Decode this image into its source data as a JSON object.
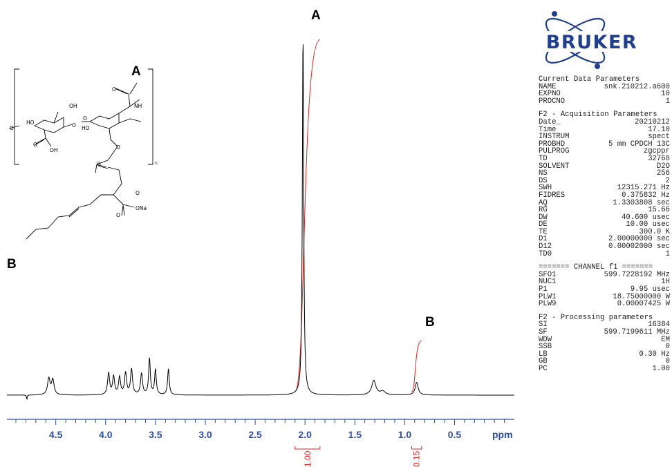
{
  "logo": {
    "text": "BRUKER",
    "color": "#1f3f8f"
  },
  "peak_labels": {
    "a_main": "A",
    "b_main": "B",
    "a_struct": "A",
    "b_struct": "B"
  },
  "structure": {
    "atoms": {
      "nh": "NH",
      "oh1": "OH",
      "ho1": "HO",
      "ho2": "HO",
      "oh2": "OH",
      "ona": "ONa",
      "o1": "O",
      "o2": "O",
      "o3": "O",
      "o4": "O",
      "o5": "O",
      "o6": "O",
      "o7": "O",
      "o8": "O",
      "o9": "O"
    },
    "subscript": "n"
  },
  "parameters": {
    "current": {
      "title": "Current Data Parameters",
      "rows": [
        [
          "NAME",
          "snk.210212.a600"
        ],
        [
          "EXPNO",
          "10"
        ],
        [
          "PROCNO",
          "1"
        ]
      ]
    },
    "acquisition": {
      "title": "F2 - Acquisition Parameters",
      "rows": [
        [
          "Date_",
          "20210212"
        ],
        [
          "Time",
          "17.10"
        ],
        [
          "INSTRUM",
          "spect"
        ],
        [
          "PROBHD",
          "5 mm CPDCH 13C"
        ],
        [
          "PULPROG",
          "zgcppr"
        ],
        [
          "TD",
          "32768"
        ],
        [
          "SOLVENT",
          "D2O"
        ],
        [
          "NS",
          "256"
        ],
        [
          "DS",
          "2"
        ],
        [
          "SWH",
          "12315.271 Hz"
        ],
        [
          "FIDRES",
          "0.375832 Hz"
        ],
        [
          "AQ",
          "1.3303808 sec"
        ],
        [
          "RG",
          "15.66"
        ],
        [
          "DW",
          "40.600 usec"
        ],
        [
          "DE",
          "10.00 usec"
        ],
        [
          "TE",
          "300.0 K"
        ],
        [
          "D1",
          "2.00000000 sec"
        ],
        [
          "D12",
          "0.00002000 sec"
        ],
        [
          "TD0",
          "1"
        ]
      ]
    },
    "channel": {
      "title": "======= CHANNEL f1 =======",
      "rows": [
        [
          "SFO1",
          "599.7228192 MHz"
        ],
        [
          "NUC1",
          "1H"
        ],
        [
          "P1",
          "9.95 usec"
        ],
        [
          "PLW1",
          "18.75000000 W"
        ],
        [
          "PLW9",
          "0.00007425 W"
        ]
      ]
    },
    "processing": {
      "title": "F2 - Processing parameters",
      "rows": [
        [
          "SI",
          "16384"
        ],
        [
          "SF",
          "599.7199611 MHz"
        ],
        [
          "WDW",
          "EM"
        ],
        [
          "SSB",
          "0"
        ],
        [
          "LB",
          "0.30 Hz"
        ],
        [
          "GB",
          "0"
        ],
        [
          "PC",
          "1.00"
        ]
      ]
    }
  },
  "chart_data": {
    "type": "line",
    "xlabel": "ppm",
    "x_reversed": true,
    "xlim": [
      4.99,
      -0.1
    ],
    "ylim": [
      0,
      1
    ],
    "major_ticks": [
      4.5,
      4.0,
      3.5,
      3.0,
      2.5,
      2.0,
      1.5,
      1.0,
      0.5
    ],
    "tick_labels": [
      "4.5",
      "4.0",
      "3.5",
      "3.0",
      "2.5",
      "2.0",
      "1.5",
      "1.0",
      "0.5"
    ],
    "spectrum_color": "#000000",
    "axis_color": "#2a4fa8",
    "integral_color": "#e0201e",
    "peaks": [
      {
        "ppm": 4.79,
        "height": -0.012,
        "width": 0.004
      },
      {
        "ppm": 4.57,
        "height": 0.045,
        "width": 0.015
      },
      {
        "ppm": 4.53,
        "height": 0.042,
        "width": 0.015
      },
      {
        "ppm": 3.97,
        "height": 0.06,
        "width": 0.012
      },
      {
        "ppm": 3.92,
        "height": 0.05,
        "width": 0.012
      },
      {
        "ppm": 3.86,
        "height": 0.048,
        "width": 0.012
      },
      {
        "ppm": 3.8,
        "height": 0.06,
        "width": 0.012
      },
      {
        "ppm": 3.74,
        "height": 0.07,
        "width": 0.012
      },
      {
        "ppm": 3.64,
        "height": 0.058,
        "width": 0.012
      },
      {
        "ppm": 3.56,
        "height": 0.1,
        "width": 0.01
      },
      {
        "ppm": 3.5,
        "height": 0.07,
        "width": 0.01
      },
      {
        "ppm": 3.37,
        "height": 0.072,
        "width": 0.01
      },
      {
        "ppm": 2.02,
        "height": 1.0,
        "width": 0.008
      },
      {
        "ppm": 1.31,
        "height": 0.04,
        "width": 0.025
      },
      {
        "ppm": 1.22,
        "height": 0.01,
        "width": 0.03
      },
      {
        "ppm": 0.88,
        "height": 0.035,
        "width": 0.018
      }
    ],
    "integrals": [
      {
        "label": "1.00",
        "from": 2.1,
        "to": 1.85,
        "rise": 0.98
      },
      {
        "label": "0.15",
        "from": 0.93,
        "to": 0.83,
        "rise": 0.15
      }
    ]
  }
}
